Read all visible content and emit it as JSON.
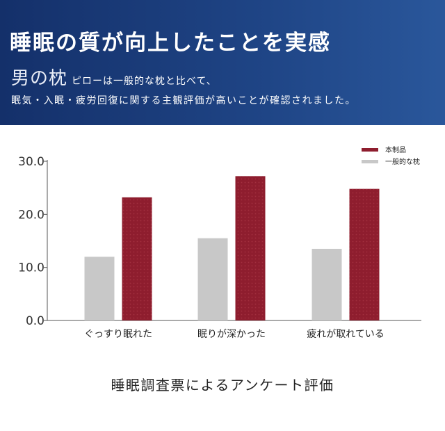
{
  "header": {
    "title": "睡眠の質が向上したことを実感",
    "brand": "男の枕",
    "desc_line1": "ピローは一般的な枕と比べて、",
    "desc_line2": "眠気・入眠・疲労回復に関する主観評価が高いことが確認されました。"
  },
  "colors": {
    "header_bg": "#1f4586",
    "product": "#8e1d2e",
    "generic": "#c8c8c8"
  },
  "chart_data": {
    "type": "bar",
    "categories": [
      "ぐっすり眠れた",
      "眠りが深かった",
      "疲れが取れている"
    ],
    "series": [
      {
        "name": "一般的な枕",
        "values": [
          12.0,
          15.5,
          13.5
        ],
        "color": "#c8c8c8"
      },
      {
        "name": "本制品",
        "values": [
          23.2,
          27.2,
          24.8
        ],
        "color": "#8e1d2e"
      }
    ],
    "ylim": [
      0,
      30
    ],
    "yticks": [
      "0.0",
      "10.0",
      "20.0",
      "30.0"
    ],
    "legend_position": "top-right",
    "grid": false
  },
  "caption": "睡眠調査票によるアンケート評価"
}
